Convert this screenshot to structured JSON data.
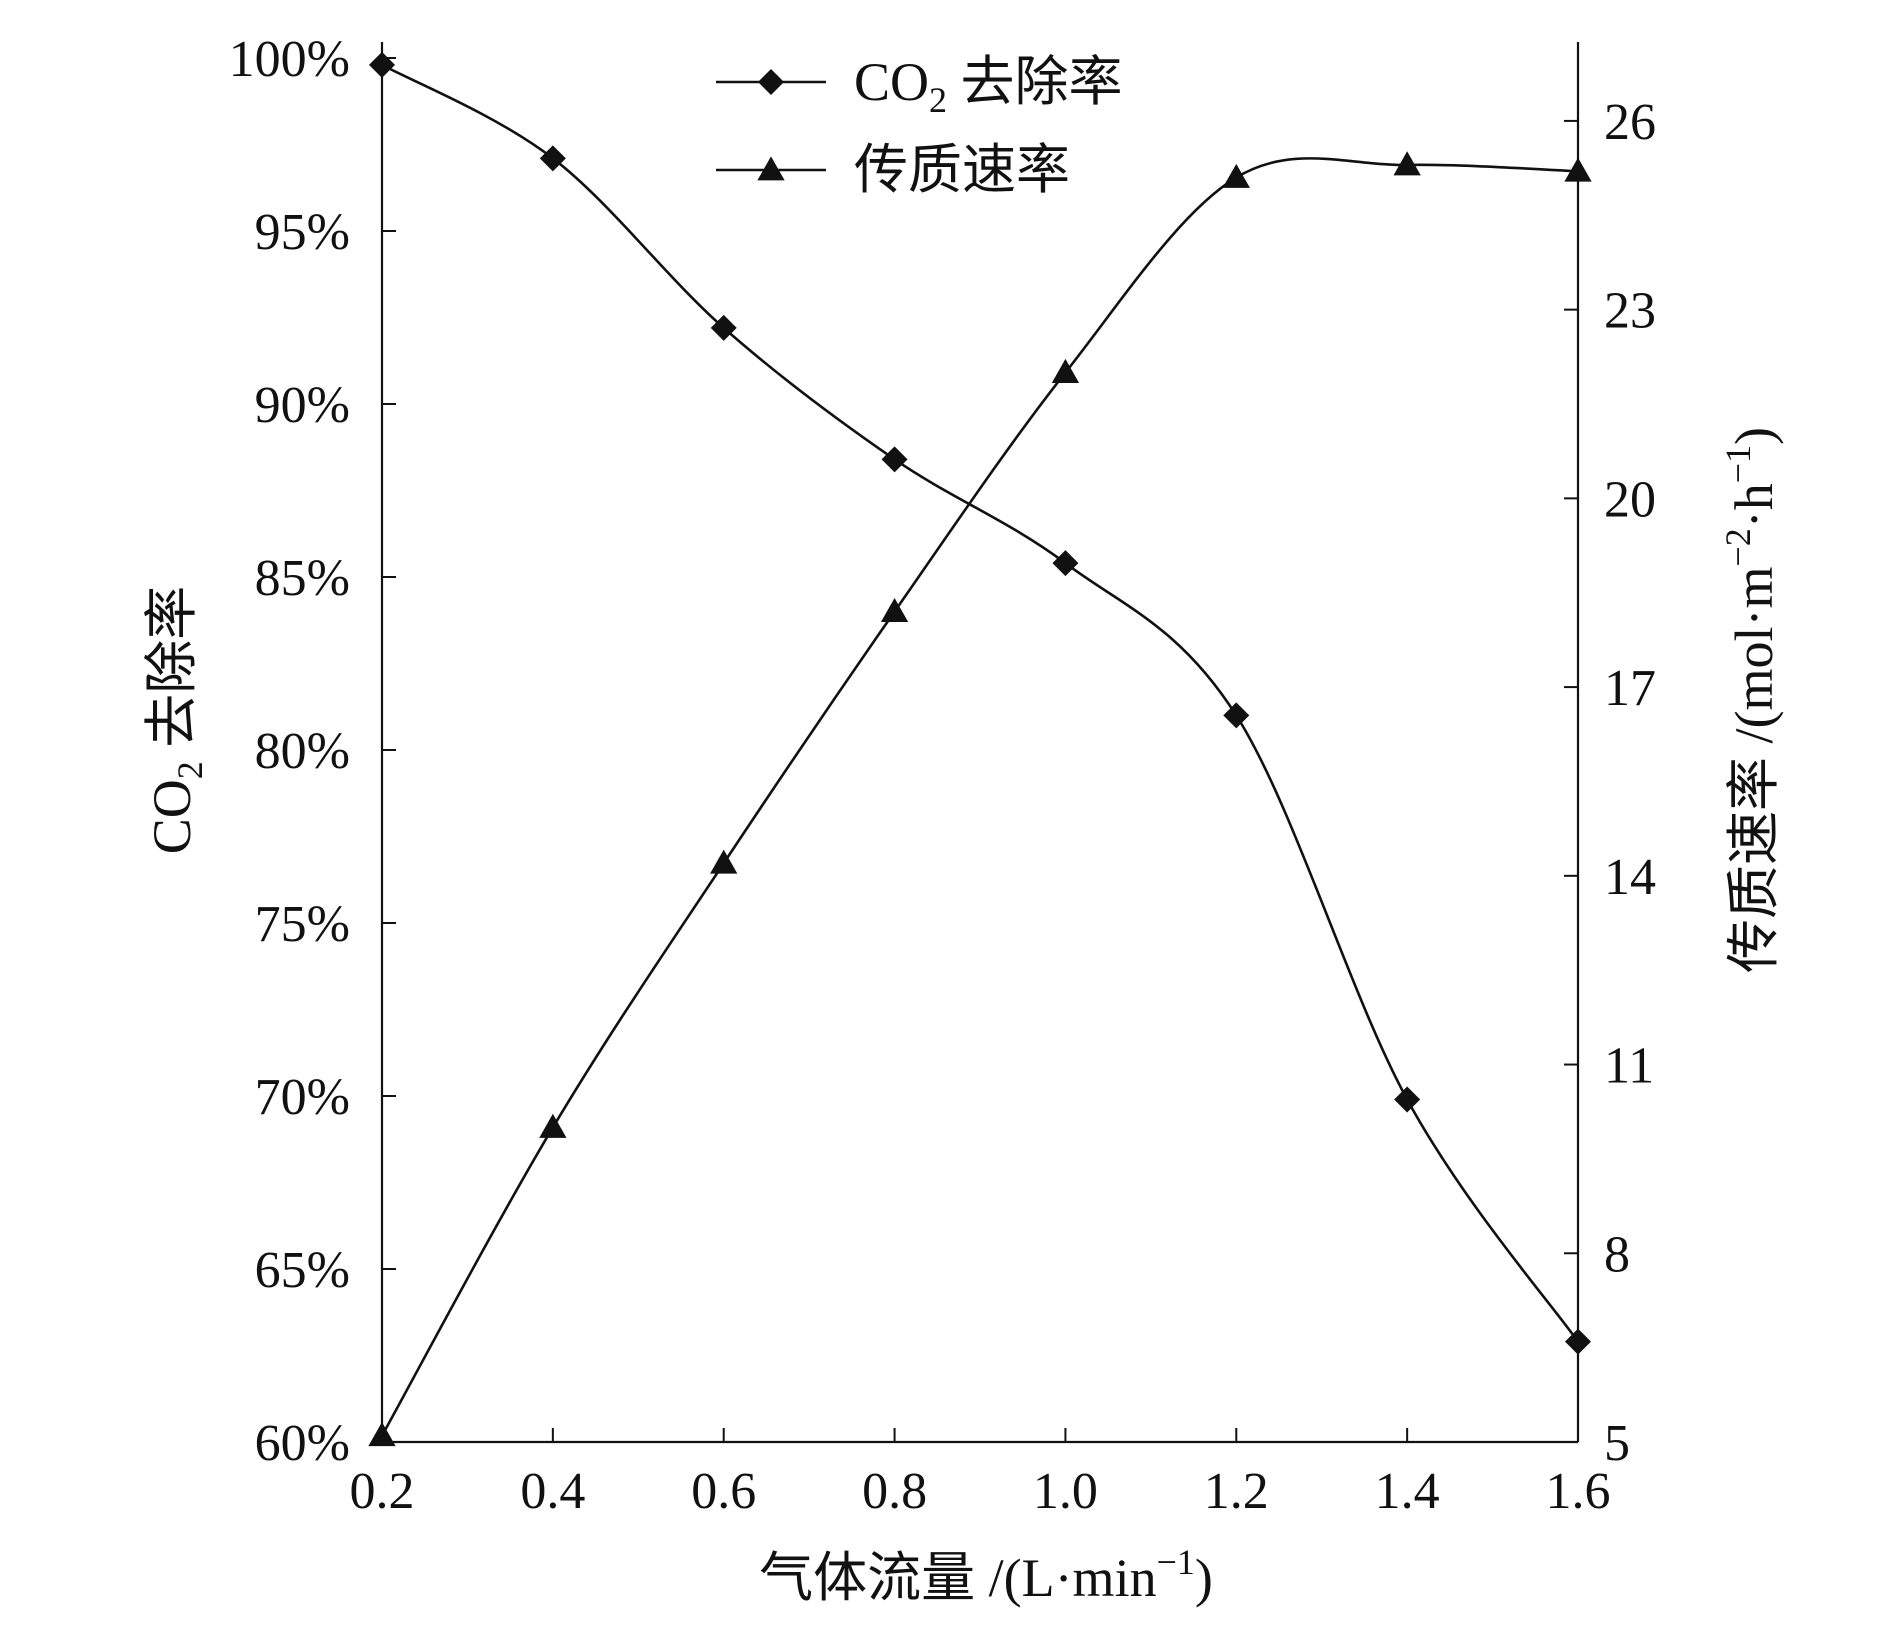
{
  "chart_data": {
    "type": "line",
    "x": [
      0.2,
      0.4,
      0.6,
      0.8,
      1.0,
      1.2,
      1.4,
      1.6
    ],
    "x_ticks": [
      "0.2",
      "0.4",
      "0.6",
      "0.8",
      "1.0",
      "1.2",
      "1.4",
      "1.6"
    ],
    "xlim": [
      0.2,
      1.6
    ],
    "xlabel": {
      "main": "气体流量 /(L·min",
      "sup": "−1",
      "close": ")"
    },
    "y_left": {
      "lim": [
        0.6,
        1.0
      ],
      "ticks": [
        0.6,
        0.65,
        0.7,
        0.75,
        0.8,
        0.85,
        0.9,
        0.95,
        1.0
      ],
      "tick_labels": [
        "60%",
        "65%",
        "70%",
        "75%",
        "80%",
        "85%",
        "90%",
        "95%",
        "100%"
      ],
      "label": {
        "pre": "CO",
        "sub": "2",
        "post": " 去除率"
      }
    },
    "y_right": {
      "lim": [
        5,
        27
      ],
      "ticks": [
        5,
        8,
        11,
        14,
        17,
        20,
        23,
        26
      ],
      "tick_labels": [
        "5",
        "8",
        "11",
        "14",
        "17",
        "20",
        "23",
        "26"
      ],
      "label": {
        "pre": "传质速率 /(mol·m",
        "sup1": "−2",
        "mid": "·h",
        "sup2": "−1",
        "close": ")"
      }
    },
    "series": [
      {
        "name": "CO₂ 去除率",
        "legend": {
          "pre": "CO",
          "sub": "2",
          "post": " 去除率"
        },
        "axis": "left",
        "marker": "diamond",
        "values": [
          0.998,
          0.971,
          0.922,
          0.884,
          0.854,
          0.81,
          0.699,
          0.629
        ]
      },
      {
        "name": "传质速率",
        "legend": {
          "pre": "传质速率",
          "sub": "",
          "post": ""
        },
        "axis": "right",
        "marker": "triangle",
        "values": [
          5.1,
          10.0,
          14.2,
          18.2,
          22.0,
          25.1,
          25.3,
          25.2
        ]
      }
    ],
    "legend_position": "top-center",
    "grid": false,
    "smooth": true
  }
}
